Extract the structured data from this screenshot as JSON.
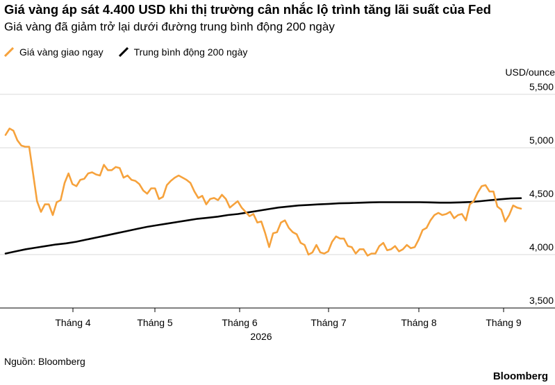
{
  "chart_data": {
    "type": "line",
    "title": "Giá vàng áp sát 4.400 USD khi thị trường cân nhắc lộ trình tăng lãi suất của Fed",
    "subtitle": "Giá vàng đã giảm trở lại dưới đường trung bình động 200 ngày",
    "unit_label": "USD/ounce",
    "year_label": "2026",
    "x_labels": [
      "Tháng 4",
      "Tháng 5",
      "Tháng 6",
      "Tháng 7",
      "Tháng 8",
      "Tháng 9"
    ],
    "y_ticks": [
      "5,500",
      "5,000",
      "4,500",
      "4,000",
      "3,500"
    ],
    "y_tick_values": [
      5500,
      5000,
      4500,
      4000,
      3500
    ],
    "ylim": [
      3500,
      5500
    ],
    "grid": true,
    "legend_position": "top-left",
    "series": [
      {
        "name": "Giá vàng giao ngay",
        "color": "#f6a23c",
        "values": [
          5120,
          5180,
          5160,
          5070,
          5020,
          5010,
          5010,
          4760,
          4500,
          4400,
          4470,
          4470,
          4370,
          4490,
          4510,
          4670,
          4760,
          4660,
          4640,
          4700,
          4710,
          4760,
          4770,
          4750,
          4740,
          4840,
          4790,
          4790,
          4820,
          4810,
          4720,
          4740,
          4700,
          4690,
          4660,
          4600,
          4570,
          4620,
          4620,
          4520,
          4540,
          4650,
          4690,
          4720,
          4740,
          4720,
          4700,
          4670,
          4590,
          4530,
          4550,
          4470,
          4520,
          4530,
          4510,
          4560,
          4520,
          4440,
          4470,
          4500,
          4440,
          4400,
          4360,
          4380,
          4300,
          4310,
          4200,
          4070,
          4200,
          4210,
          4300,
          4320,
          4250,
          4210,
          4190,
          4110,
          4090,
          4000,
          4020,
          4090,
          4020,
          4010,
          4030,
          4120,
          4170,
          4150,
          4150,
          4080,
          4070,
          4010,
          4050,
          4050,
          3990,
          4010,
          4010,
          4080,
          4110,
          4040,
          4050,
          4080,
          4030,
          4050,
          4090,
          4060,
          4070,
          4140,
          4230,
          4250,
          4320,
          4370,
          4390,
          4370,
          4380,
          4400,
          4340,
          4370,
          4380,
          4320,
          4470,
          4500,
          4580,
          4640,
          4650,
          4590,
          4590,
          4450,
          4420,
          4310,
          4370,
          4460,
          4440,
          4430
        ],
        "end": "Sep 7"
      },
      {
        "name": "Trung bình động 200 ngày",
        "color": "#000000",
        "values": [
          4010,
          4030,
          4050,
          4065,
          4080,
          4095,
          4105,
          4120,
          4140,
          4160,
          4180,
          4200,
          4220,
          4240,
          4260,
          4275,
          4290,
          4305,
          4320,
          4335,
          4345,
          4355,
          4370,
          4380,
          4395,
          4410,
          4425,
          4440,
          4450,
          4460,
          4465,
          4470,
          4475,
          4480,
          4482,
          4485,
          4488,
          4490,
          4490,
          4490,
          4490,
          4490,
          4488,
          4486,
          4486,
          4488,
          4492,
          4500,
          4510,
          4518,
          4525,
          4528
        ],
        "end": "Sep 7"
      }
    ]
  },
  "footer": {
    "source": "Nguồn: Bloomberg",
    "brand": "Bloomberg"
  }
}
